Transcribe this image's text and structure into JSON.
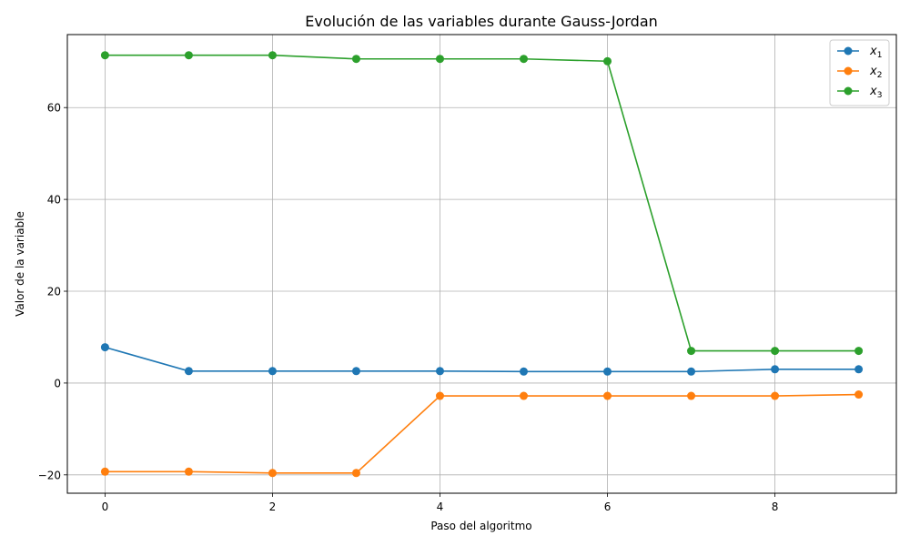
{
  "chart_data": {
    "type": "line",
    "title": "Evolución de las variables durante Gauss-Jordan",
    "xlabel": "Paso del algoritmo",
    "ylabel": "Valor de la variable",
    "x": [
      0,
      1,
      2,
      3,
      4,
      5,
      6,
      7,
      8,
      9
    ],
    "xlim": [
      -0.45,
      9.45
    ],
    "ylim": [
      -24.0,
      75.9
    ],
    "xticks": [
      0,
      2,
      4,
      6,
      8
    ],
    "yticks": [
      -20,
      0,
      20,
      40,
      60
    ],
    "ytick_labels": [
      "−20",
      "0",
      "20",
      "40",
      "60"
    ],
    "grid": true,
    "legend_position": "top-right",
    "series": [
      {
        "name": "x",
        "sub": "1",
        "color": "#1f77b4",
        "values": [
          7.8,
          2.6,
          2.6,
          2.6,
          2.6,
          2.5,
          2.5,
          2.5,
          3.0,
          3.0
        ]
      },
      {
        "name": "x",
        "sub": "2",
        "color": "#ff7f0e",
        "values": [
          -19.3,
          -19.3,
          -19.6,
          -19.6,
          -2.8,
          -2.8,
          -2.8,
          -2.8,
          -2.8,
          -2.5
        ]
      },
      {
        "name": "x",
        "sub": "3",
        "color": "#2ca02c",
        "values": [
          71.4,
          71.4,
          71.4,
          70.6,
          70.6,
          70.6,
          70.1,
          7.0,
          7.0,
          7.0
        ]
      }
    ]
  }
}
